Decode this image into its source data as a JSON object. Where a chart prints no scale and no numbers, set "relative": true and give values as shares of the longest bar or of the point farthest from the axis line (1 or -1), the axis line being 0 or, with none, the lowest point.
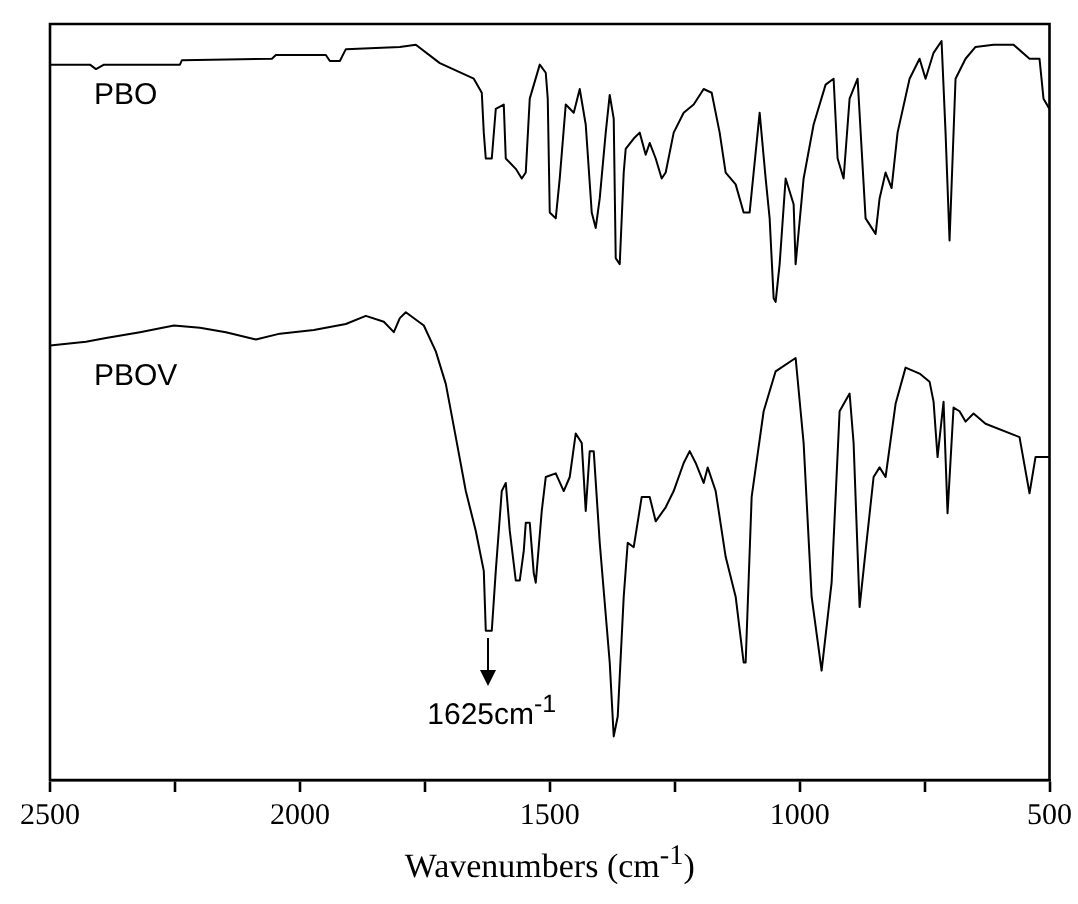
{
  "chart_data": {
    "type": "line",
    "xlabel": "Wavenumbers (cm$^{-1}$)",
    "relative": true,
    "tick_labels": "x",
    "grid": false,
    "legend": false,
    "marker": "none",
    "line_style": "solid",
    "xlim": [
      2500,
      500
    ],
    "xticks": [
      2500,
      {
        "value": 2250,
        "label": null
      },
      2000,
      {
        "value": 1750,
        "label": null
      },
      1500,
      {
        "value": 1250,
        "label": null
      },
      1000,
      {
        "value": 750,
        "label": null
      },
      500
    ],
    "annotations": [
      {
        "text": "1625cm$^{-1}$",
        "x": 1625,
        "y": 0.202
      }
    ],
    "series": [
      {
        "name": "PBO",
        "color": "#000000",
        "x": [
          2500,
          2420,
          2408,
          2392,
          2240,
          2236,
          2056,
          2048,
          1948,
          1940,
          1920,
          1908,
          1800,
          1768,
          1720,
          1652,
          1636,
          1632,
          1628,
          1616,
          1608,
          1592,
          1588,
          1568,
          1556,
          1548,
          1540,
          1520,
          1508,
          1504,
          1500,
          1488,
          1480,
          1468,
          1452,
          1440,
          1428,
          1416,
          1408,
          1400,
          1388,
          1380,
          1372,
          1368,
          1360,
          1352,
          1348,
          1332,
          1320,
          1308,
          1300,
          1288,
          1276,
          1268,
          1252,
          1232,
          1212,
          1192,
          1176,
          1160,
          1148,
          1128,
          1112,
          1100,
          1080,
          1068,
          1060,
          1052,
          1048,
          1040,
          1028,
          1012,
          1008,
          992,
          972,
          948,
          932,
          924,
          912,
          900,
          884,
          868,
          848,
          840,
          828,
          816,
          804,
          780,
          760,
          748,
          732,
          716,
          708,
          700,
          688,
          668,
          648,
          612,
          572,
          540,
          520,
          512,
          500
        ],
        "values": [
          0.968,
          0.968,
          0.962,
          0.968,
          0.968,
          0.974,
          0.976,
          0.981,
          0.981,
          0.973,
          0.973,
          0.989,
          0.992,
          0.995,
          0.97,
          0.949,
          0.93,
          0.876,
          0.841,
          0.841,
          0.908,
          0.914,
          0.841,
          0.827,
          0.814,
          0.822,
          0.922,
          0.968,
          0.957,
          0.922,
          0.768,
          0.76,
          0.814,
          0.914,
          0.903,
          0.935,
          0.887,
          0.768,
          0.747,
          0.787,
          0.876,
          0.927,
          0.895,
          0.706,
          0.698,
          0.822,
          0.854,
          0.868,
          0.876,
          0.846,
          0.862,
          0.841,
          0.814,
          0.822,
          0.876,
          0.903,
          0.914,
          0.935,
          0.93,
          0.876,
          0.822,
          0.806,
          0.768,
          0.768,
          0.903,
          0.814,
          0.76,
          0.652,
          0.647,
          0.698,
          0.814,
          0.779,
          0.698,
          0.814,
          0.887,
          0.941,
          0.949,
          0.841,
          0.814,
          0.922,
          0.949,
          0.76,
          0.739,
          0.787,
          0.822,
          0.801,
          0.876,
          0.949,
          0.976,
          0.949,
          0.984,
          1.0,
          0.876,
          0.73,
          0.949,
          0.976,
          0.992,
          0.995,
          0.995,
          0.976,
          0.976,
          0.922,
          0.908
        ]
      },
      {
        "name": "PBOV",
        "color": "#000000",
        "x": [
          2500,
          2428,
          2388,
          2320,
          2252,
          2200,
          2148,
          2088,
          2040,
          1972,
          1908,
          1868,
          1832,
          1812,
          1800,
          1788,
          1752,
          1728,
          1708,
          1688,
          1668,
          1648,
          1632,
          1628,
          1616,
          1608,
          1596,
          1588,
          1580,
          1568,
          1560,
          1552,
          1548,
          1540,
          1532,
          1528,
          1516,
          1508,
          1488,
          1472,
          1460,
          1448,
          1436,
          1428,
          1420,
          1412,
          1400,
          1380,
          1372,
          1364,
          1352,
          1344,
          1332,
          1316,
          1300,
          1288,
          1268,
          1252,
          1232,
          1220,
          1208,
          1192,
          1184,
          1168,
          1148,
          1128,
          1112,
          1108,
          1096,
          1072,
          1048,
          1008,
          992,
          976,
          956,
          936,
          920,
          900,
          892,
          880,
          868,
          852,
          840,
          828,
          808,
          788,
          760,
          740,
          732,
          724,
          712,
          704,
          692,
          680,
          668,
          652,
          628,
          560,
          540,
          528,
          500
        ],
        "values": [
          0.588,
          0.593,
          0.598,
          0.606,
          0.615,
          0.612,
          0.606,
          0.596,
          0.604,
          0.609,
          0.617,
          0.628,
          0.62,
          0.606,
          0.625,
          0.633,
          0.615,
          0.58,
          0.536,
          0.464,
          0.391,
          0.337,
          0.283,
          0.202,
          0.202,
          0.283,
          0.391,
          0.402,
          0.337,
          0.27,
          0.27,
          0.31,
          0.348,
          0.348,
          0.28,
          0.267,
          0.364,
          0.41,
          0.415,
          0.391,
          0.41,
          0.469,
          0.456,
          0.364,
          0.445,
          0.445,
          0.321,
          0.159,
          0.059,
          0.086,
          0.248,
          0.321,
          0.315,
          0.383,
          0.383,
          0.35,
          0.369,
          0.391,
          0.429,
          0.445,
          0.429,
          0.402,
          0.423,
          0.391,
          0.302,
          0.248,
          0.159,
          0.159,
          0.383,
          0.499,
          0.553,
          0.571,
          0.456,
          0.248,
          0.148,
          0.267,
          0.499,
          0.523,
          0.456,
          0.234,
          0.31,
          0.41,
          0.423,
          0.41,
          0.509,
          0.558,
          0.55,
          0.539,
          0.512,
          0.437,
          0.512,
          0.361,
          0.504,
          0.499,
          0.485,
          0.496,
          0.482,
          0.464,
          0.388,
          0.437,
          0.437
        ]
      }
    ]
  }
}
